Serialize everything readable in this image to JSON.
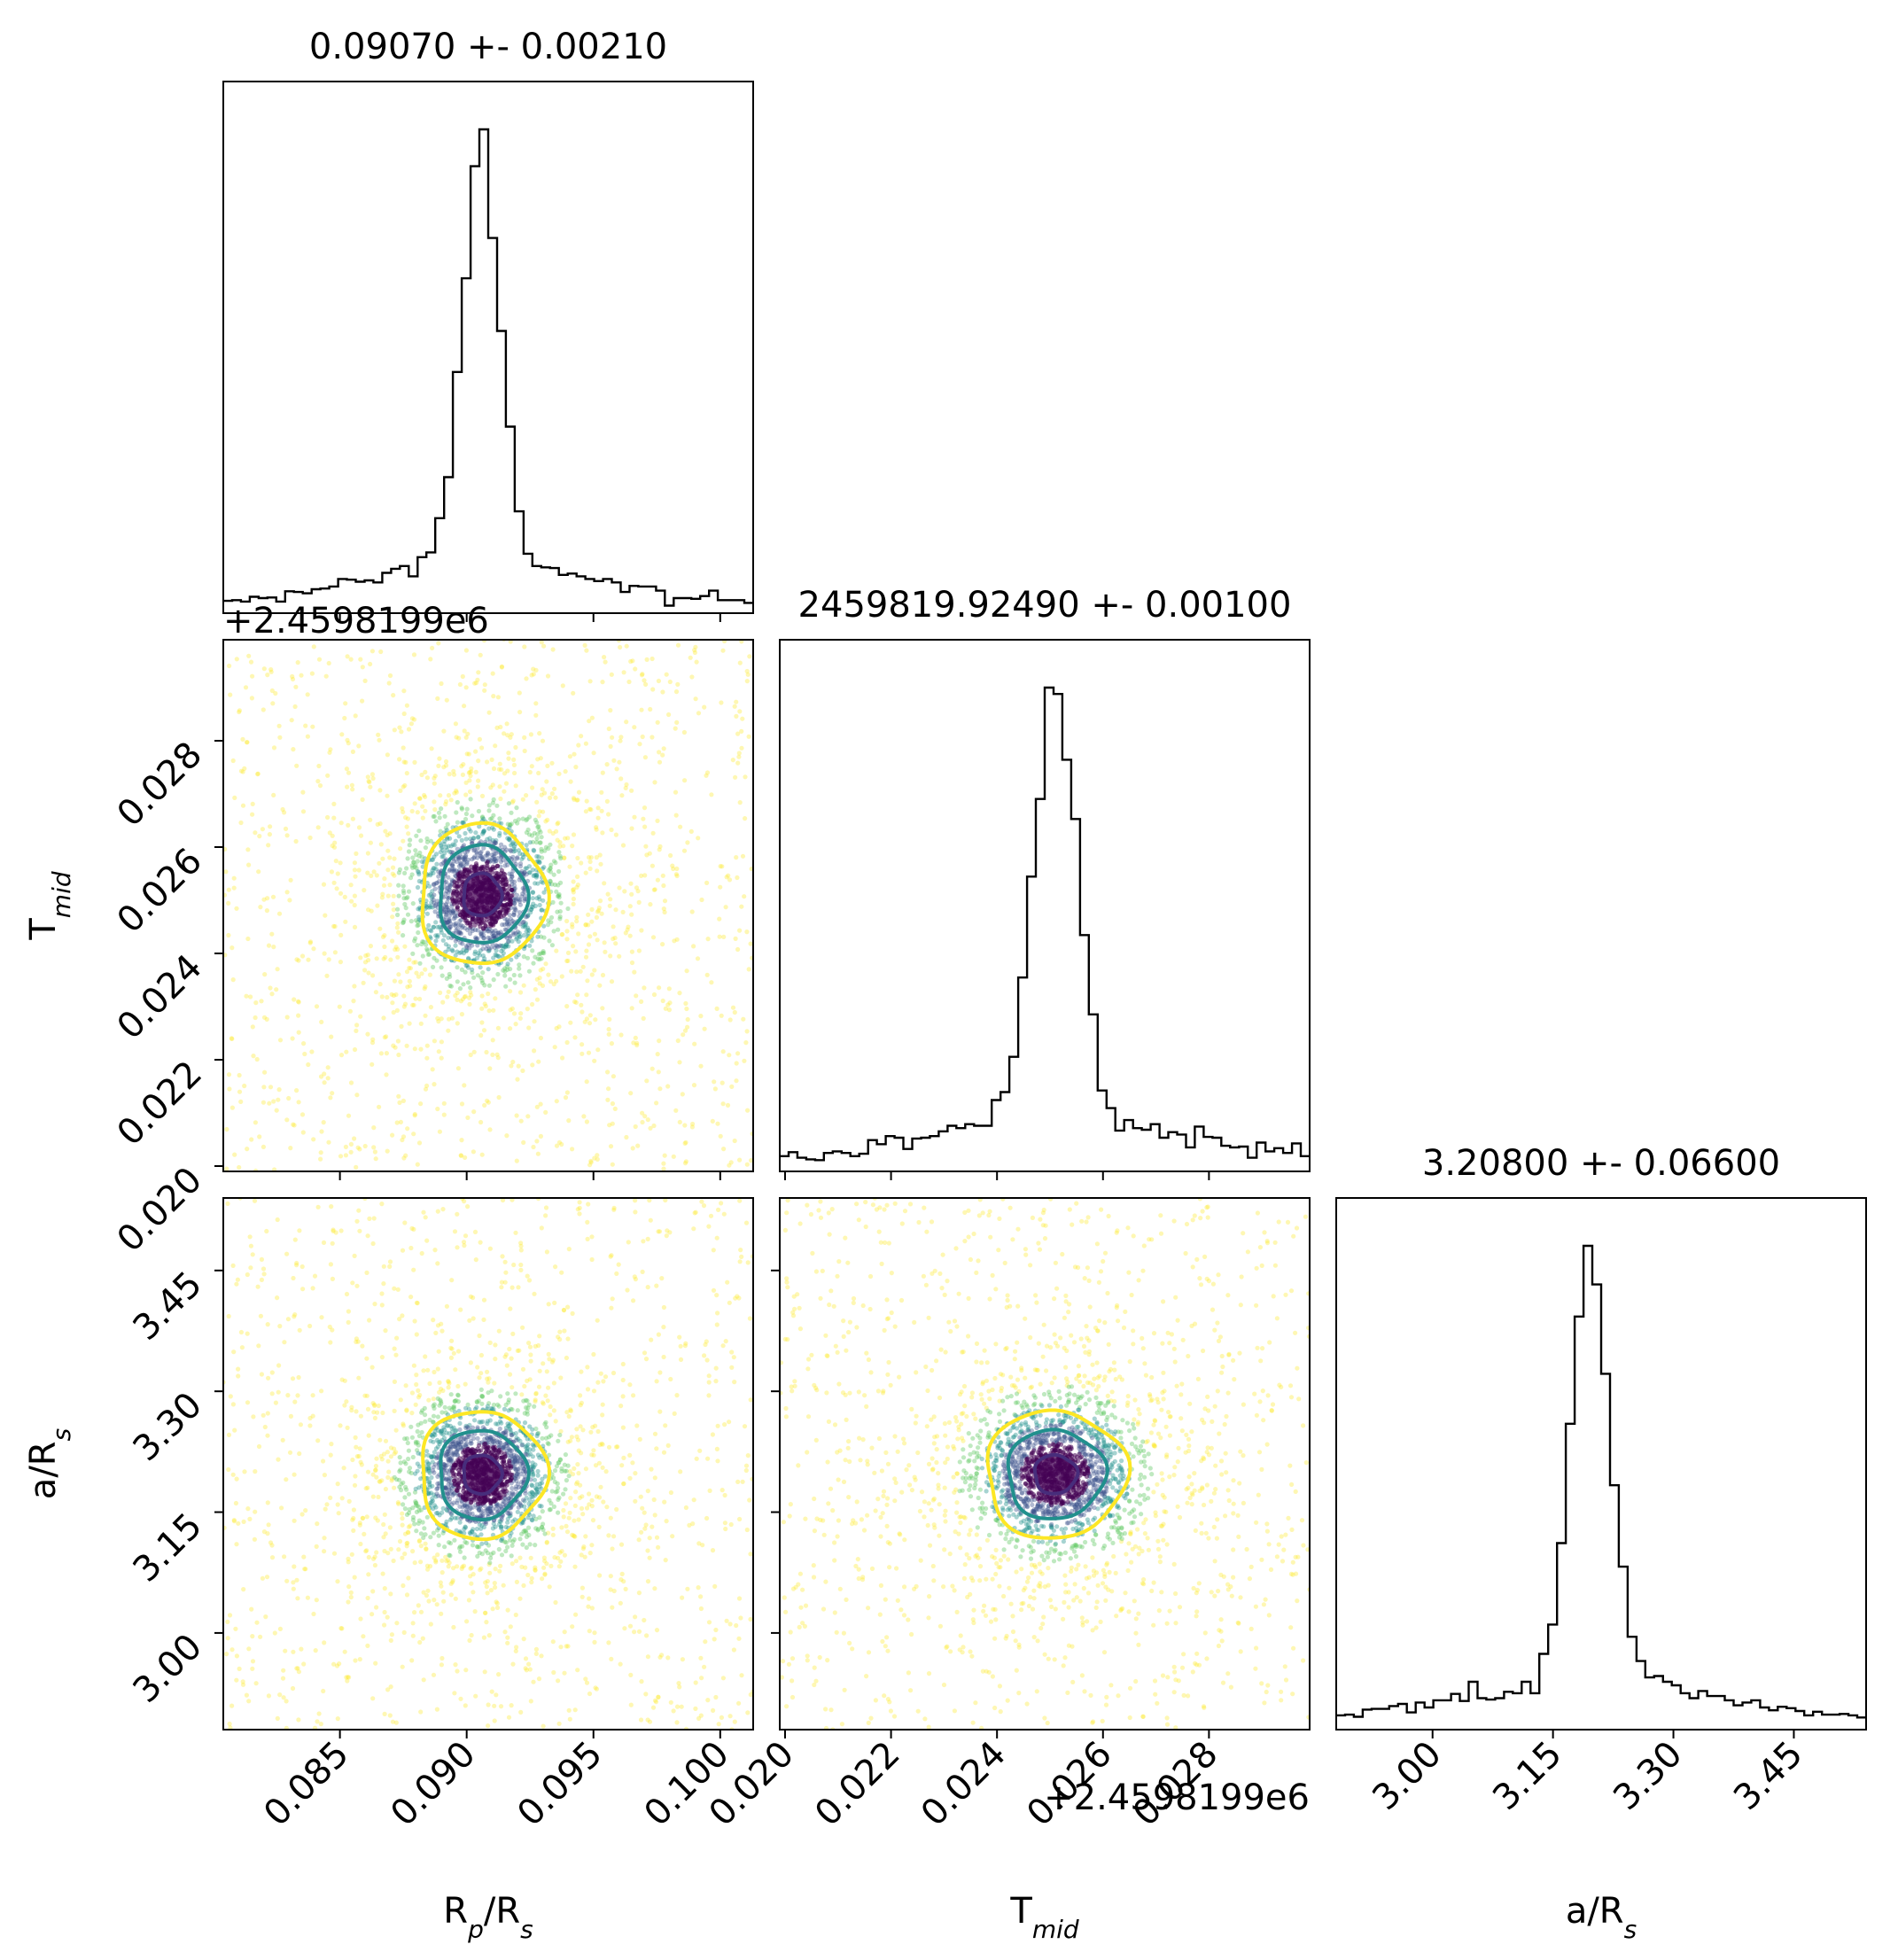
{
  "chart_data": {
    "type": "corner",
    "parameters": [
      {
        "key": "rp",
        "label": "R_p/R_s",
        "label_main": "R",
        "label_sub1": "p",
        "label_mid": "/R",
        "label_sub2": "s",
        "range": [
          0.0804,
          0.1013
        ],
        "ticks": [
          0.085,
          0.09,
          0.095,
          0.1
        ],
        "tick_labels": [
          "0.085",
          "0.090",
          "0.095",
          "0.100"
        ],
        "offset": "",
        "title": "0.09070 +- 0.00210",
        "peak": 0.0906,
        "sigma_core": 0.00075,
        "sigma_wing": 0.0045
      },
      {
        "key": "tmid",
        "label": "T_mid",
        "label_main": "T",
        "label_sub1": "mid",
        "label_mid": "",
        "label_sub2": "",
        "range": [
          0.0199,
          0.0299
        ],
        "ticks": [
          0.02,
          0.022,
          0.024,
          0.026,
          0.028
        ],
        "tick_labels": [
          "0.020",
          "0.022",
          "0.024",
          "0.026",
          "0.028"
        ],
        "offset": "+2.4598199e6",
        "title": "2459819.92490 +- 0.00100",
        "peak": 0.0251,
        "sigma_core": 0.0004,
        "sigma_wing": 0.0022
      },
      {
        "key": "ars",
        "label": "a/R_s",
        "label_main": "a/R",
        "label_sub1": "s",
        "label_mid": "",
        "label_sub2": "",
        "range": [
          2.88,
          3.54
        ],
        "ticks": [
          3.0,
          3.15,
          3.3,
          3.45
        ],
        "tick_labels": [
          "3.00",
          "3.15",
          "3.30",
          "3.45"
        ],
        "offset": "",
        "title": "3.20800 +- 0.06600",
        "peak": 3.197,
        "sigma_core": 0.024,
        "sigma_wing": 0.14
      }
    ],
    "samples_per_panel": 2800,
    "contour_levels": [
      {
        "name": "inner",
        "color": "#472d7b",
        "radius_sigma": 1.0
      },
      {
        "name": "middle",
        "color": "#21908d",
        "radius_sigma": 2.3
      },
      {
        "name": "outer",
        "color": "#fde725",
        "radius_sigma": 3.3
      }
    ],
    "colormap": [
      "#440154",
      "#3b528b",
      "#21918c",
      "#5ec962",
      "#fde725"
    ],
    "grid": false,
    "legend": "none"
  }
}
